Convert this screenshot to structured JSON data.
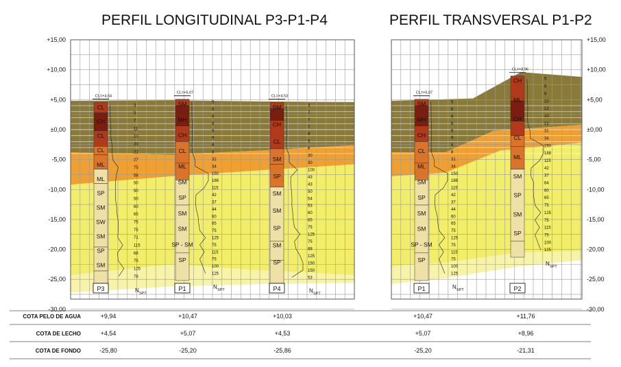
{
  "titles": {
    "longitudinal": "PERFIL LONGITUDINAL P3-P1-P4",
    "transversal": "PERFIL TRANSVERSAL P1-P2"
  },
  "axis": {
    "left_ticks": [
      "+15,00",
      "+10,00",
      "+5,00",
      "±0,00",
      "-5,00",
      "-10,00",
      "-15,00",
      "-20,00",
      "-25,00",
      "-30,00"
    ],
    "right_ticks": [
      "+15,00",
      "+10,00",
      "+5,00",
      "±0,00",
      "-5,00",
      "-10,00",
      "-15,00",
      "-20,00",
      "-25,00",
      "-30,00"
    ]
  },
  "colors": {
    "olive": "#8a7a39",
    "orange": "#f0a030",
    "yellow": "#f2ee6a",
    "light_yellow": "#f7f3a8",
    "column_dark": "#7a1f10",
    "column_red": "#b03a1a",
    "column_orange": "#d9742a",
    "column_light": "#efe0a6"
  },
  "boreholes": {
    "p3": {
      "label": "P3",
      "cl_label": "CL=+4,54",
      "layers": [
        "CL",
        "CH",
        "CL",
        "CL",
        "ML",
        "ML",
        "SP",
        "SM",
        "SW",
        "SM",
        "SP",
        "SM"
      ],
      "nspt": [
        "3",
        "5",
        "7",
        "11",
        "10",
        "20",
        "22",
        "27",
        "75",
        "58",
        "50",
        "50",
        "50",
        "60",
        "65",
        "75",
        "75",
        "71",
        "115",
        "68",
        "75",
        "125",
        "79"
      ]
    },
    "p1": {
      "label": "P1",
      "cl_label": "CL=+5,07",
      "layers": [
        "SM",
        "MH",
        "CH",
        "CL",
        "ML",
        "SM",
        "SP",
        "SM",
        "SM",
        "SP - SM",
        "SP"
      ],
      "nspt": [
        "5",
        "6",
        "6",
        "8",
        "9",
        "9",
        "6",
        "8",
        "31",
        "34",
        "150",
        "188",
        "115",
        "42",
        "37",
        "44",
        "60",
        "65",
        "75",
        "125",
        "75",
        "115",
        "75",
        "100",
        "125"
      ]
    },
    "p4": {
      "label": "P4",
      "cl_label": "CL=+4,53",
      "layers": [
        "SM",
        "CH",
        "CL",
        "SM",
        "SP",
        "SM",
        "SM",
        "SP",
        "SM",
        "SP"
      ],
      "nspt": [
        "3",
        "7",
        "7",
        "7",
        "8",
        "5",
        "6",
        "30",
        "30",
        "100",
        "43",
        "43",
        "50",
        "54",
        "53",
        "60",
        "65",
        "75",
        "125",
        "75",
        "88",
        "125",
        "150",
        "150",
        "53"
      ]
    },
    "p1_t": {
      "label": "P1",
      "cl_label": "CL=+5,07",
      "layers": [
        "SM",
        "MH",
        "CH",
        "CL",
        "ML",
        "SM",
        "SP",
        "SM",
        "SM",
        "SP - SM",
        "SP"
      ],
      "nspt": [
        "5",
        "6",
        "6",
        "8",
        "9",
        "9",
        "6",
        "8",
        "31",
        "34",
        "150",
        "188",
        "115",
        "42",
        "37",
        "44",
        "60",
        "65",
        "75",
        "125",
        "75",
        "115",
        "75",
        "100",
        "125"
      ]
    },
    "p2": {
      "label": "P2",
      "cl_label": "CL=+8,96",
      "layers": [
        "CH",
        "ML",
        "CH",
        "CL",
        "ML",
        "SM",
        "SP",
        "SM",
        "SP"
      ],
      "nspt": [
        "5",
        "8",
        "9",
        "10",
        "12",
        "10",
        "12",
        "31",
        "34",
        "150",
        "188",
        "115",
        "42",
        "37",
        "64",
        "60",
        "65",
        "75",
        "125",
        "75",
        "115",
        "75",
        "100",
        "125"
      ]
    }
  },
  "nspt_label": "N",
  "nspt_sub": "SPT",
  "table": {
    "rows": [
      {
        "label": "COTA PELO DE AGUA",
        "values": [
          "+9,94",
          "+10,47",
          "+10,03",
          "+10,47",
          "+11,76"
        ]
      },
      {
        "label": "COTA DE LECHO",
        "values": [
          "+4,54",
          "+5,07",
          "+4,53",
          "+5,07",
          "+8,96"
        ]
      },
      {
        "label": "COTA DE FONDO",
        "values": [
          "-25,80",
          "-25,20",
          "-25,86",
          "-25,20",
          "-21,31"
        ]
      }
    ]
  }
}
